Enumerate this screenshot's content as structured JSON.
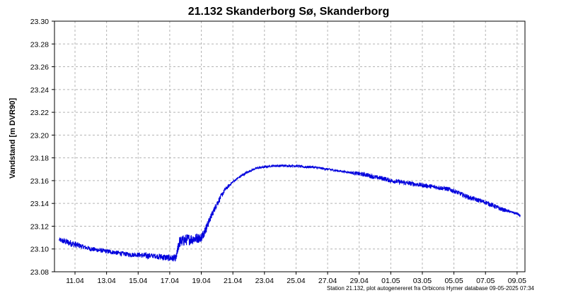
{
  "chart_data": {
    "type": "line",
    "title": "21.132 Skanderborg Sø, Skanderborg",
    "ylabel": "Vandstand [m DVR90]",
    "xlabel": "",
    "footer": "Station 21.132, plot autogenereret fra Orbicons Hymer database 09-05-2025 07:34",
    "ylim": [
      23.08,
      23.3
    ],
    "yticks": [
      "23.08",
      "23.10",
      "23.12",
      "23.14",
      "23.16",
      "23.18",
      "23.20",
      "23.22",
      "23.24",
      "23.26",
      "23.28",
      "23.30"
    ],
    "xlim_days": [
      9.7,
      39.5
    ],
    "xticks": [
      {
        "label": "11.04",
        "day": 11
      },
      {
        "label": "13.04",
        "day": 13
      },
      {
        "label": "15.04",
        "day": 15
      },
      {
        "label": "17.04",
        "day": 17
      },
      {
        "label": "19.04",
        "day": 19
      },
      {
        "label": "21.04",
        "day": 21
      },
      {
        "label": "23.04",
        "day": 23
      },
      {
        "label": "25.04",
        "day": 25
      },
      {
        "label": "27.04",
        "day": 27
      },
      {
        "label": "29.04",
        "day": 29
      },
      {
        "label": "01.05",
        "day": 31
      },
      {
        "label": "03.05",
        "day": 33
      },
      {
        "label": "05.05",
        "day": 35
      },
      {
        "label": "07.05",
        "day": 37
      },
      {
        "label": "09.05",
        "day": 39
      }
    ],
    "grid": true,
    "series": [
      {
        "color": "#0000dd",
        "x_day": [
          10.0,
          10.5,
          11.0,
          11.5,
          12.0,
          12.5,
          13.0,
          13.5,
          14.0,
          14.5,
          15.0,
          15.5,
          16.0,
          16.5,
          17.0,
          17.4,
          17.6,
          18.0,
          18.5,
          19.0,
          19.3,
          19.6,
          20.0,
          20.5,
          21.0,
          21.5,
          22.0,
          22.5,
          23.0,
          23.5,
          24.0,
          24.5,
          25.0,
          25.5,
          26.0,
          26.5,
          27.0,
          27.5,
          28.0,
          28.5,
          29.0,
          29.5,
          30.0,
          30.5,
          31.0,
          31.5,
          32.0,
          32.5,
          33.0,
          33.5,
          34.0,
          34.5,
          35.0,
          35.5,
          36.0,
          36.5,
          37.0,
          37.5,
          38.0,
          38.5,
          39.0,
          39.2
        ],
        "y": [
          23.108,
          23.106,
          23.104,
          23.102,
          23.1,
          23.099,
          23.098,
          23.097,
          23.096,
          23.095,
          23.095,
          23.094,
          23.094,
          23.093,
          23.092,
          23.092,
          23.106,
          23.108,
          23.109,
          23.11,
          23.118,
          23.128,
          23.14,
          23.152,
          23.159,
          23.164,
          23.168,
          23.171,
          23.172,
          23.173,
          23.173,
          23.173,
          23.173,
          23.172,
          23.172,
          23.171,
          23.17,
          23.169,
          23.168,
          23.167,
          23.166,
          23.165,
          23.163,
          23.162,
          23.16,
          23.159,
          23.158,
          23.157,
          23.156,
          23.155,
          23.154,
          23.153,
          23.151,
          23.148,
          23.145,
          23.143,
          23.141,
          23.138,
          23.135,
          23.133,
          23.131,
          23.129
        ],
        "noise": [
          0.002,
          0.003,
          0.003,
          0.002,
          0.002,
          0.002,
          0.002,
          0.002,
          0.002,
          0.002,
          0.002,
          0.003,
          0.002,
          0.003,
          0.003,
          0.003,
          0.005,
          0.005,
          0.005,
          0.004,
          0.004,
          0.003,
          0.003,
          0.002,
          0.001,
          0.001,
          0.001,
          0.001,
          0.001,
          0.001,
          0.001,
          0.001,
          0.001,
          0.001,
          0.001,
          0.001,
          0.001,
          0.001,
          0.001,
          0.001,
          0.002,
          0.002,
          0.002,
          0.002,
          0.002,
          0.002,
          0.002,
          0.002,
          0.002,
          0.002,
          0.002,
          0.002,
          0.002,
          0.002,
          0.002,
          0.002,
          0.002,
          0.002,
          0.002,
          0.001,
          0.001,
          0.001
        ]
      }
    ]
  }
}
